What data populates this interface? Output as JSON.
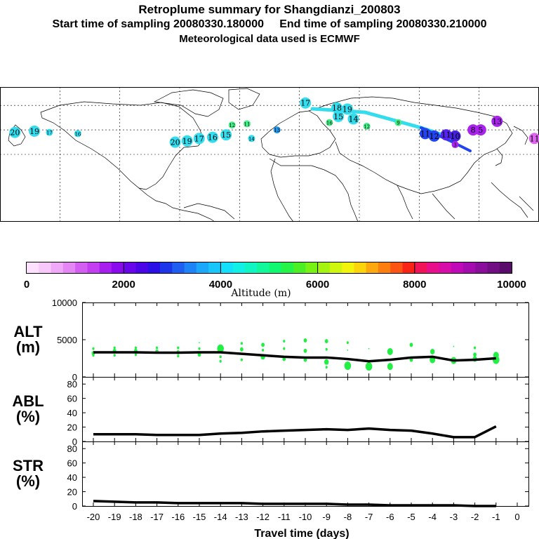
{
  "title": {
    "line1": "Retroplume summary for Shangdianzi_200803",
    "line2": "Start time of sampling 20080330.180000     End time of sampling 20080330.210000",
    "line3": "Meteorological data used is ECMWF"
  },
  "map": {
    "markers": [
      {
        "label": "17",
        "lon": 24,
        "lat": 62,
        "color": "#33ddee",
        "size": "large"
      },
      {
        "label": "18",
        "lon": 45,
        "lat": 58,
        "color": "#33ddee",
        "size": "large"
      },
      {
        "label": "19",
        "lon": 52,
        "lat": 57,
        "color": "#33ddee",
        "size": "large"
      },
      {
        "label": "15",
        "lon": 46,
        "lat": 51,
        "color": "#33ddee",
        "size": "large"
      },
      {
        "label": "14",
        "lon": 56,
        "lat": 49,
        "color": "#33ddee",
        "size": "large"
      },
      {
        "label": "16",
        "lon": 40,
        "lat": 46,
        "color": "#44ee88",
        "size": "small"
      },
      {
        "label": "12",
        "lon": -25,
        "lat": 44,
        "color": "#44ee88",
        "size": "small"
      },
      {
        "label": "11",
        "lon": -15,
        "lat": 45,
        "color": "#44ee88",
        "size": "small"
      },
      {
        "label": "12",
        "lon": 65,
        "lat": 43,
        "color": "#44ee88",
        "size": "small"
      },
      {
        "label": "20",
        "lon": -170,
        "lat": 38,
        "color": "#33ddee",
        "size": "large"
      },
      {
        "label": "19",
        "lon": -157,
        "lat": 39,
        "color": "#33ddee",
        "size": "large"
      },
      {
        "label": "17",
        "lon": -147,
        "lat": 38,
        "color": "#33ddee",
        "size": "small"
      },
      {
        "label": "16",
        "lon": -128,
        "lat": 37,
        "color": "#33ddee",
        "size": "small"
      },
      {
        "label": "20",
        "lon": -63,
        "lat": 30,
        "color": "#33ddee",
        "size": "large"
      },
      {
        "label": "19",
        "lon": -55,
        "lat": 31,
        "color": "#33ddee",
        "size": "large"
      },
      {
        "label": "17",
        "lon": -47,
        "lat": 33,
        "color": "#33ddee",
        "size": "large"
      },
      {
        "label": "16",
        "lon": -38,
        "lat": 34,
        "color": "#33ddee",
        "size": "large"
      },
      {
        "label": "15",
        "lon": -29,
        "lat": 36,
        "color": "#33ddee",
        "size": "large"
      },
      {
        "label": "14",
        "lon": -12,
        "lat": 33,
        "color": "#33ddee",
        "size": "small"
      },
      {
        "label": "13",
        "lon": 5,
        "lat": 40,
        "color": "#2299ee",
        "size": "small"
      },
      {
        "label": "11",
        "lon": 104,
        "lat": 37,
        "color": "#2244ee",
        "size": "large"
      },
      {
        "label": "12",
        "lon": 110,
        "lat": 35,
        "color": "#2244ee",
        "size": "large"
      },
      {
        "label": "11",
        "lon": 118,
        "lat": 36,
        "color": "#5522ee",
        "size": "large"
      },
      {
        "label": "10",
        "lon": 124,
        "lat": 35,
        "color": "#4422dd",
        "size": "large"
      },
      {
        "label": "5",
        "lon": 141,
        "lat": 40,
        "color": "#aa22ee",
        "size": "large"
      },
      {
        "label": "8",
        "lon": 136,
        "lat": 40,
        "color": "#aa22ee",
        "size": "large"
      },
      {
        "label": "13",
        "lon": 152,
        "lat": 47,
        "color": "#aa22ee",
        "size": "large"
      },
      {
        "label": "11",
        "lon": 177,
        "lat": 33,
        "color": "#dd66ee",
        "size": "large"
      },
      {
        "label": "9",
        "lon": 86,
        "lat": 46,
        "color": "#44ee88",
        "size": "small"
      },
      {
        "label": "3",
        "lon": 124,
        "lat": 28,
        "color": "#aa22ee",
        "size": "small"
      }
    ]
  },
  "colorbar": {
    "ticks": [
      "0",
      "2000",
      "4000",
      "6000",
      "8000",
      "10000"
    ],
    "title": "Altitude (m)",
    "colors": [
      "#fde0fd",
      "#f9c8fb",
      "#f0a8f8",
      "#e486f4",
      "#d45ef1",
      "#c23ef0",
      "#a81eef",
      "#8a0cee",
      "#6a06ea",
      "#4a06e6",
      "#2a10e6",
      "#1e36ea",
      "#1e5ef0",
      "#1c84f6",
      "#1ca8fa",
      "#18c6fc",
      "#14e0fc",
      "#10f0e6",
      "#10f6c2",
      "#10f89a",
      "#10f870",
      "#24f448",
      "#4af024",
      "#78f214",
      "#a4f410",
      "#cef60e",
      "#f2f40c",
      "#fcd40c",
      "#fca80e",
      "#fc7e10",
      "#fc5412",
      "#fa2416",
      "#f21458",
      "#e8108a",
      "#d80ca8",
      "#c00ab8",
      "#a40cb0",
      "#8a0e9c",
      "#720e84",
      "#5a0c6a"
    ]
  },
  "chart_data": [
    {
      "type": "line",
      "name": "ALT",
      "ylabel": "ALT\n(m)",
      "ylim": [
        0,
        10000
      ],
      "yticks": [
        "10000",
        "5000",
        "0"
      ],
      "xlim": [
        -20,
        0
      ],
      "x": [
        -20,
        -19,
        -18,
        -17,
        -16,
        -15,
        -14,
        -13,
        -12,
        -11,
        -10,
        -9,
        -8,
        -7,
        -6,
        -5,
        -4,
        -3,
        -2,
        -1
      ],
      "values": [
        3300,
        3300,
        3300,
        3250,
        3250,
        3300,
        3300,
        3100,
        2900,
        2700,
        2600,
        2600,
        2400,
        2100,
        2300,
        2600,
        2700,
        2200,
        2300,
        2500
      ],
      "scatter": [
        {
          "x": -20,
          "y": 3200,
          "r": 3
        },
        {
          "x": -20,
          "y": 3800,
          "r": 2
        },
        {
          "x": -20,
          "y": 2900,
          "r": 2
        },
        {
          "x": -19,
          "y": 3500,
          "r": 3
        },
        {
          "x": -19,
          "y": 3900,
          "r": 2
        },
        {
          "x": -19,
          "y": 2900,
          "r": 2
        },
        {
          "x": -18,
          "y": 3500,
          "r": 3
        },
        {
          "x": -18,
          "y": 3000,
          "r": 2
        },
        {
          "x": -18,
          "y": 3900,
          "r": 2
        },
        {
          "x": -17,
          "y": 3400,
          "r": 3
        },
        {
          "x": -17,
          "y": 3900,
          "r": 2
        },
        {
          "x": -16,
          "y": 3300,
          "r": 3
        },
        {
          "x": -16,
          "y": 2800,
          "r": 2
        },
        {
          "x": -16,
          "y": 3900,
          "r": 2
        },
        {
          "x": -15,
          "y": 3000,
          "r": 3
        },
        {
          "x": -15,
          "y": 3800,
          "r": 2
        },
        {
          "x": -15,
          "y": 4600,
          "r": 1
        },
        {
          "x": -14,
          "y": 3800,
          "r": 6
        },
        {
          "x": -14,
          "y": 2700,
          "r": 2
        },
        {
          "x": -14,
          "y": 2100,
          "r": 2
        },
        {
          "x": -13,
          "y": 3700,
          "r": 3
        },
        {
          "x": -13,
          "y": 4500,
          "r": 2
        },
        {
          "x": -13,
          "y": 2300,
          "r": 2
        },
        {
          "x": -12,
          "y": 4300,
          "r": 3
        },
        {
          "x": -12,
          "y": 3600,
          "r": 2
        },
        {
          "x": -12,
          "y": 2700,
          "r": 4
        },
        {
          "x": -11,
          "y": 4800,
          "r": 2
        },
        {
          "x": -11,
          "y": 3800,
          "r": 2
        },
        {
          "x": -11,
          "y": 2400,
          "r": 3
        },
        {
          "x": -10,
          "y": 4900,
          "r": 3
        },
        {
          "x": -10,
          "y": 3500,
          "r": 3
        },
        {
          "x": -10,
          "y": 2300,
          "r": 3
        },
        {
          "x": -9,
          "y": 4800,
          "r": 3
        },
        {
          "x": -9,
          "y": 3700,
          "r": 2
        },
        {
          "x": -9,
          "y": 2000,
          "r": 4
        },
        {
          "x": -9,
          "y": 1300,
          "r": 2
        },
        {
          "x": -8,
          "y": 4600,
          "r": 2
        },
        {
          "x": -8,
          "y": 3600,
          "r": 1
        },
        {
          "x": -8,
          "y": 1500,
          "r": 6
        },
        {
          "x": -7,
          "y": 3800,
          "r": 1
        },
        {
          "x": -7,
          "y": 1400,
          "r": 6
        },
        {
          "x": -6,
          "y": 3400,
          "r": 5
        },
        {
          "x": -6,
          "y": 1400,
          "r": 5
        },
        {
          "x": -5,
          "y": 4300,
          "r": 3
        },
        {
          "x": -5,
          "y": 2300,
          "r": 3
        },
        {
          "x": -4,
          "y": 3400,
          "r": 4
        },
        {
          "x": -4,
          "y": 2300,
          "r": 5
        },
        {
          "x": -3,
          "y": 4100,
          "r": 1
        },
        {
          "x": -3,
          "y": 2200,
          "r": 5
        },
        {
          "x": -2,
          "y": 3900,
          "r": 2
        },
        {
          "x": -2,
          "y": 3000,
          "r": 3
        },
        {
          "x": -2,
          "y": 2400,
          "r": 4
        },
        {
          "x": -1,
          "y": 2300,
          "r": 6
        },
        {
          "x": -1,
          "y": 2900,
          "r": 5
        }
      ],
      "scatter_color": "#22ee44"
    },
    {
      "type": "line",
      "name": "ABL",
      "ylabel": "ABL\n(%)",
      "ylim": [
        0,
        90
      ],
      "yticks": [
        "80",
        "60",
        "40",
        "20",
        "0"
      ],
      "xlim": [
        -20,
        0
      ],
      "x": [
        -20,
        -19,
        -18,
        -17,
        -16,
        -15,
        -14,
        -13,
        -12,
        -11,
        -10,
        -9,
        -8,
        -7,
        -6,
        -5,
        -4,
        -3,
        -2,
        -1
      ],
      "values": [
        10,
        10,
        10,
        9,
        9,
        9,
        11,
        12,
        14,
        15,
        16,
        17,
        16,
        18,
        16,
        15,
        11,
        6,
        6,
        21
      ]
    },
    {
      "type": "line",
      "name": "STR",
      "ylabel": "STR\n(%)",
      "ylim": [
        0,
        90
      ],
      "yticks": [
        "80",
        "60",
        "40",
        "20",
        "0"
      ],
      "xlim": [
        -20,
        0
      ],
      "x": [
        -20,
        -19,
        -18,
        -17,
        -16,
        -15,
        -14,
        -13,
        -12,
        -11,
        -10,
        -9,
        -8,
        -7,
        -6,
        -5,
        -4,
        -3,
        -2,
        -1
      ],
      "values": [
        7,
        6,
        5,
        5,
        4,
        4,
        4,
        4,
        3,
        3,
        3,
        3,
        2,
        2,
        1,
        1,
        1,
        1,
        0,
        0
      ],
      "xlabel": "Travel time (days)",
      "xticks": [
        "-20",
        "-19",
        "-18",
        "-17",
        "-16",
        "-15",
        "-14",
        "-13",
        "-12",
        "-11",
        "-10",
        "-9",
        "-8",
        "-7",
        "-6",
        "-5",
        "-4",
        "-3",
        "-2",
        "-1",
        "0"
      ]
    }
  ]
}
